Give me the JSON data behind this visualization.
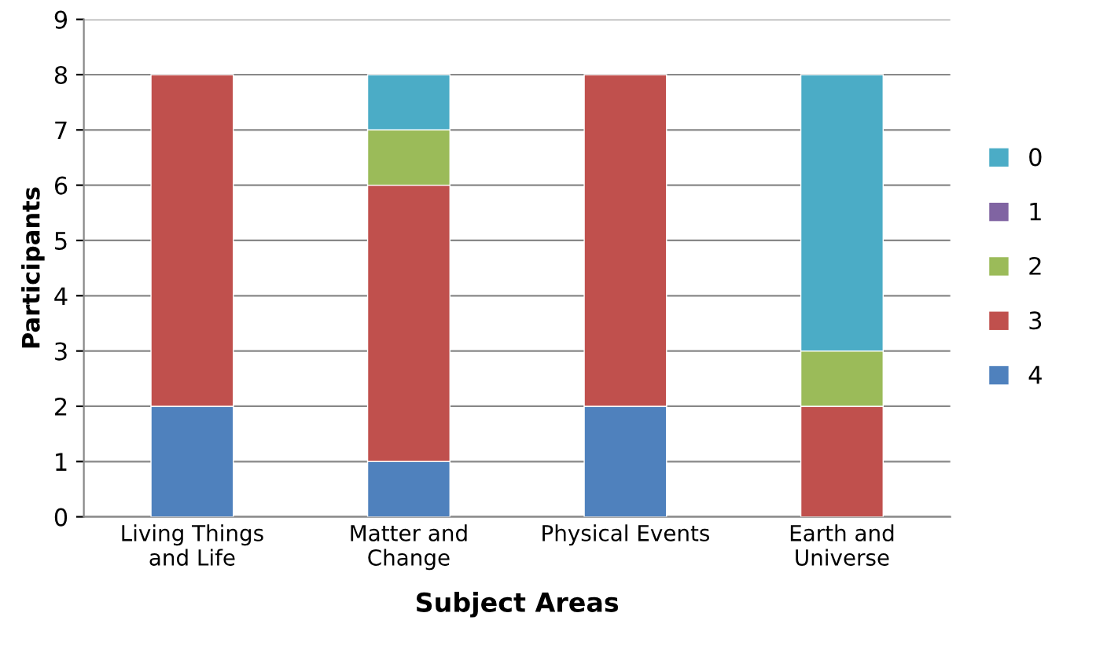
{
  "chart_data": {
    "type": "bar",
    "stacked": true,
    "xlabel": "Subject Areas",
    "ylabel": "Participants",
    "categories": [
      "Living Things\nand Life",
      "Matter and\nChange",
      "Physical Events",
      "Earth and\nUniverse"
    ],
    "series": [
      {
        "name": "4",
        "color": "#4f81bd",
        "values": [
          2,
          1,
          2,
          0
        ]
      },
      {
        "name": "3",
        "color": "#c0504d",
        "values": [
          6,
          5,
          6,
          2
        ]
      },
      {
        "name": "2",
        "color": "#9bbb59",
        "values": [
          0,
          1,
          0,
          1
        ]
      },
      {
        "name": "1",
        "color": "#8064a2",
        "values": [
          0,
          0,
          0,
          0
        ]
      },
      {
        "name": "0",
        "color": "#4bacc6",
        "values": [
          0,
          1,
          0,
          5
        ]
      }
    ],
    "ylim": [
      0,
      9
    ],
    "yticks": [
      0,
      1,
      2,
      3,
      4,
      5,
      6,
      7,
      8,
      9
    ],
    "grid": "y",
    "legend": "right"
  }
}
